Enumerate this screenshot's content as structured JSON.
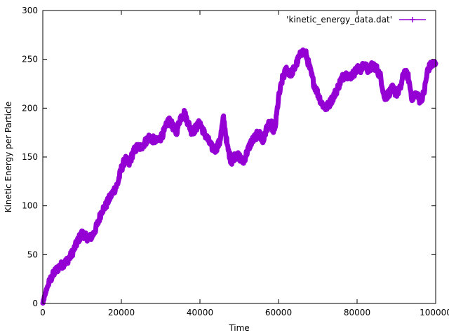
{
  "chart_data": {
    "type": "line",
    "title": "",
    "xlabel": "Time",
    "ylabel": "Kinetic Energy per Particle",
    "xlim": [
      0,
      100000
    ],
    "ylim": [
      0,
      300
    ],
    "x_ticks": [
      0,
      20000,
      40000,
      60000,
      80000,
      100000
    ],
    "y_ticks": [
      0,
      50,
      100,
      150,
      200,
      250,
      300
    ],
    "x_tick_labels": [
      "0",
      "20000",
      "40000",
      "60000",
      "80000",
      "100000"
    ],
    "y_tick_labels": [
      "0",
      "50",
      "100",
      "150",
      "200",
      "250",
      "300"
    ],
    "grid": false,
    "legend_position": "top-right",
    "line_color": "#9400d3",
    "series": [
      {
        "name": "'kinetic_energy_data.dat'",
        "noise_band": 8,
        "x": [
          0,
          500,
          1000,
          2000,
          3000,
          4000,
          5000,
          6000,
          7000,
          8000,
          9000,
          10000,
          11000,
          12000,
          13000,
          14000,
          15000,
          16000,
          17000,
          18000,
          19000,
          20000,
          21000,
          22000,
          23000,
          24000,
          25000,
          26000,
          27000,
          28000,
          29000,
          30000,
          31000,
          32000,
          33000,
          34000,
          35000,
          36000,
          37000,
          38000,
          39000,
          40000,
          41000,
          42000,
          43000,
          44000,
          45000,
          46000,
          47000,
          48000,
          49000,
          50000,
          51000,
          52000,
          53000,
          54000,
          55000,
          56000,
          57000,
          58000,
          59000,
          60000,
          61000,
          62000,
          63000,
          64000,
          65000,
          66000,
          67000,
          68000,
          69000,
          70000,
          71000,
          72000,
          73000,
          74000,
          75000,
          76000,
          77000,
          78000,
          79000,
          80000,
          81000,
          82000,
          83000,
          84000,
          85000,
          86000,
          87000,
          88000,
          89000,
          90000,
          91000,
          92000,
          93000,
          94000,
          95000,
          96000,
          97000,
          98000,
          99000,
          100000
        ],
        "y": [
          0,
          8,
          15,
          25,
          32,
          37,
          40,
          43,
          48,
          56,
          65,
          72,
          68,
          67,
          72,
          82,
          95,
          100,
          108,
          115,
          122,
          138,
          148,
          143,
          155,
          160,
          160,
          165,
          170,
          168,
          166,
          170,
          177,
          188,
          182,
          175,
          190,
          195,
          185,
          175,
          180,
          185,
          175,
          168,
          160,
          158,
          165,
          190,
          160,
          145,
          152,
          150,
          145,
          155,
          165,
          170,
          175,
          165,
          180,
          185,
          175,
          210,
          230,
          240,
          235,
          240,
          250,
          258,
          255,
          240,
          225,
          215,
          205,
          200,
          205,
          212,
          220,
          230,
          235,
          232,
          235,
          240,
          240,
          245,
          238,
          245,
          240,
          232,
          210,
          215,
          220,
          215,
          220,
          238,
          232,
          210,
          215,
          208,
          215,
          240,
          245,
          245
        ]
      }
    ]
  }
}
